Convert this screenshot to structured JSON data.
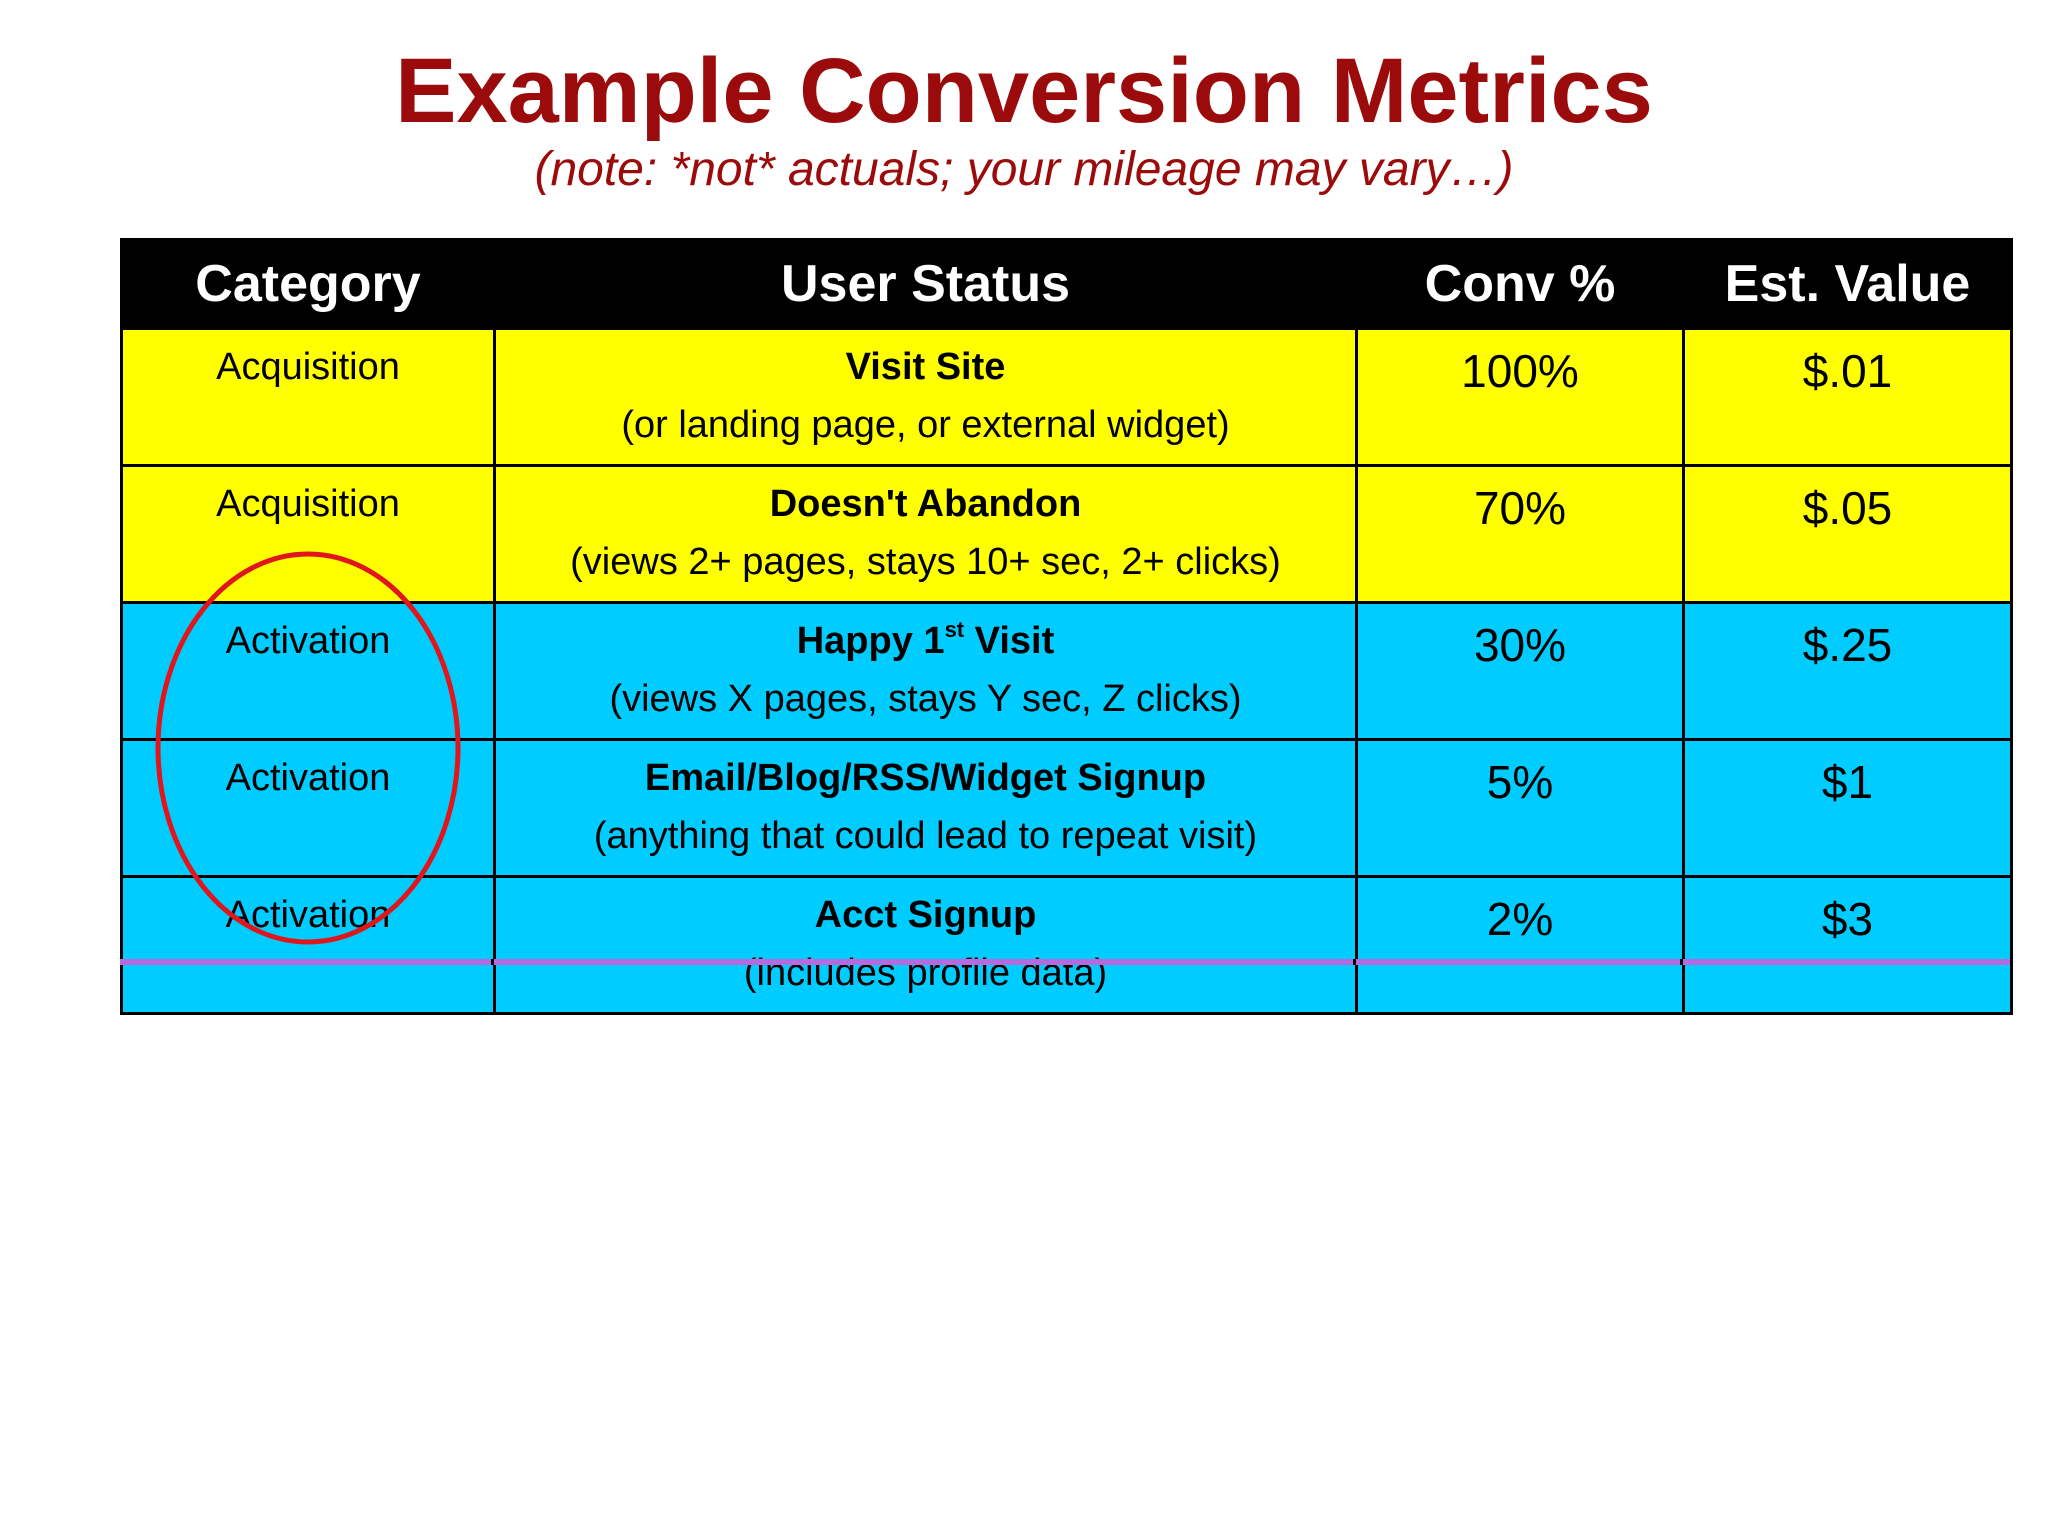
{
  "slide": {
    "title": "Example Conversion Metrics",
    "subtitle": "(note: *not* actuals; your mileage may vary…)"
  },
  "table": {
    "headers": {
      "category": "Category",
      "user_status": "User Status",
      "conv": "Conv %",
      "value": "Est. Value"
    },
    "rows": [
      {
        "category": "Acquisition",
        "status_name": "Visit Site",
        "status_note": "(or landing page, or external widget)",
        "conv": "100%",
        "value": "$.01"
      },
      {
        "category": "Acquisition",
        "status_name": "Doesn't Abandon",
        "status_note": "(views 2+ pages, stays 10+ sec, 2+ clicks)",
        "conv": "70%",
        "value": "$.05"
      },
      {
        "category": "Activation",
        "status_name_pre": "Happy 1",
        "status_name_sup": "st",
        "status_name_post": " Visit",
        "status_note": "(views X pages, stays Y sec, Z clicks)",
        "conv": "30%",
        "value": "$.25"
      },
      {
        "category": "Activation",
        "status_name": "Email/Blog/RSS/Widget Signup",
        "status_note": "(anything that could lead to repeat visit)",
        "conv": "5%",
        "value": "$1"
      },
      {
        "category": "Activation",
        "status_name": "Acct Signup",
        "status_note": "(includes profile data)",
        "conv": "2%",
        "value": "$3"
      }
    ]
  },
  "colors": {
    "title": "#9b0b0b",
    "acquisition_row": "#ffff00",
    "activation_row": "#00ccff",
    "header_bg": "#000000",
    "annotation": "#e0161c",
    "next_row_strip": "#b56be0"
  }
}
